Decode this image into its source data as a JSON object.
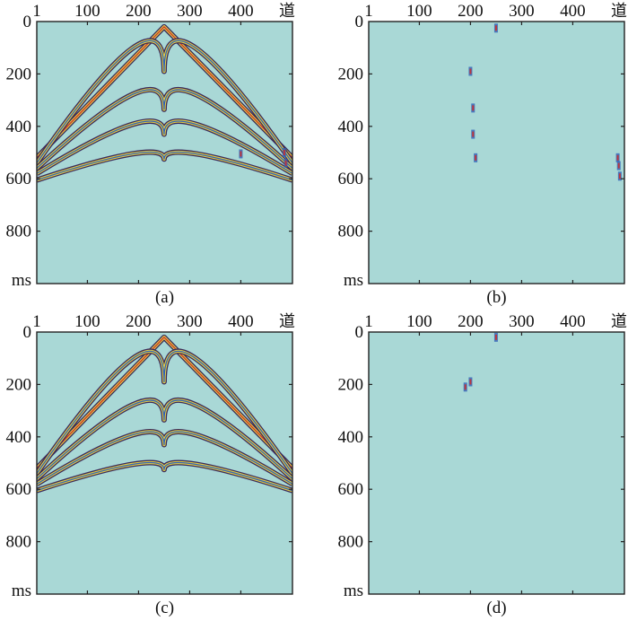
{
  "colors": {
    "background": "#a9d8d6",
    "frame": "#222222",
    "event_dark": "#3a2a5a",
    "event_red": "#c83030",
    "event_yellow": "#e8d040",
    "event_blue": "#2f62b8"
  },
  "chart_data": [
    {
      "type": "heatmap",
      "panel_label": "(a)",
      "x_ticks": [
        "1",
        "100",
        "200",
        "300",
        "400",
        "道"
      ],
      "y_ticks": [
        "0",
        "200",
        "400",
        "600",
        "800",
        "ms"
      ],
      "xlim": [
        1,
        501
      ],
      "ylim": [
        0,
        1000
      ],
      "events": [
        {
          "kind": "direct",
          "apex_trace": 250,
          "apex_ms": 20,
          "edge_ms": 520
        },
        {
          "kind": "hyperbola",
          "apex_trace": 250,
          "apex_ms": 190,
          "edge_ms": 540
        },
        {
          "kind": "hyperbola",
          "apex_trace": 250,
          "apex_ms": 335,
          "edge_ms": 560
        },
        {
          "kind": "hyperbola",
          "apex_trace": 250,
          "apex_ms": 430,
          "edge_ms": 580
        },
        {
          "kind": "hyperbola",
          "apex_trace": 250,
          "apex_ms": 525,
          "edge_ms": 605
        }
      ],
      "noise": [
        {
          "trace": 485,
          "ms": 500
        },
        {
          "trace": 488,
          "ms": 540
        },
        {
          "trace": 400,
          "ms": 505
        }
      ]
    },
    {
      "type": "heatmap",
      "panel_label": "(b)",
      "x_ticks": [
        "1",
        "100",
        "200",
        "300",
        "400",
        "道"
      ],
      "y_ticks": [
        "0",
        "200",
        "400",
        "600",
        "800",
        "ms"
      ],
      "xlim": [
        1,
        501
      ],
      "ylim": [
        0,
        1000
      ],
      "events": [],
      "noise": [
        {
          "trace": 250,
          "ms": 25
        },
        {
          "trace": 200,
          "ms": 190
        },
        {
          "trace": 205,
          "ms": 330
        },
        {
          "trace": 205,
          "ms": 430
        },
        {
          "trace": 210,
          "ms": 520
        },
        {
          "trace": 488,
          "ms": 520
        },
        {
          "trace": 490,
          "ms": 550
        },
        {
          "trace": 492,
          "ms": 590
        }
      ]
    },
    {
      "type": "heatmap",
      "panel_label": "(c)",
      "x_ticks": [
        "1",
        "100",
        "200",
        "300",
        "400",
        "道"
      ],
      "y_ticks": [
        "0",
        "200",
        "400",
        "600",
        "800",
        "ms"
      ],
      "xlim": [
        1,
        501
      ],
      "ylim": [
        0,
        1000
      ],
      "events": [
        {
          "kind": "direct",
          "apex_trace": 250,
          "apex_ms": 20,
          "edge_ms": 520
        },
        {
          "kind": "hyperbola",
          "apex_trace": 250,
          "apex_ms": 190,
          "edge_ms": 540
        },
        {
          "kind": "hyperbola",
          "apex_trace": 250,
          "apex_ms": 335,
          "edge_ms": 560
        },
        {
          "kind": "hyperbola",
          "apex_trace": 250,
          "apex_ms": 430,
          "edge_ms": 580
        },
        {
          "kind": "hyperbola",
          "apex_trace": 250,
          "apex_ms": 525,
          "edge_ms": 605
        }
      ],
      "noise": []
    },
    {
      "type": "heatmap",
      "panel_label": "(d)",
      "x_ticks": [
        "1",
        "100",
        "200",
        "300",
        "400",
        "道"
      ],
      "y_ticks": [
        "0",
        "200",
        "400",
        "600",
        "800",
        "ms"
      ],
      "xlim": [
        1,
        501
      ],
      "ylim": [
        0,
        1000
      ],
      "events": [],
      "noise": [
        {
          "trace": 250,
          "ms": 20
        },
        {
          "trace": 200,
          "ms": 190
        },
        {
          "trace": 190,
          "ms": 210
        }
      ]
    }
  ]
}
